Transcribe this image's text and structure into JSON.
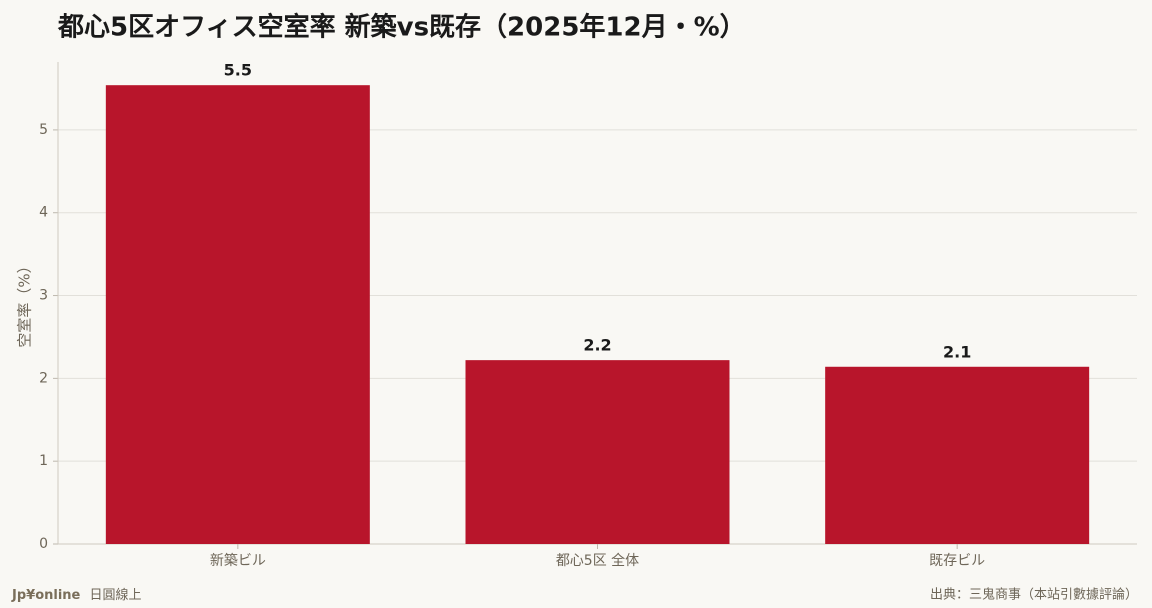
{
  "chart_data": {
    "type": "bar",
    "title": "都心5区オフィス空室率 新築vs既存（2025年12月・%）",
    "y_label": "空室率（%）",
    "categories": [
      "新築ビル",
      "都心5区 全体",
      "既存ビル"
    ],
    "values": [
      5.54,
      2.22,
      2.14
    ],
    "value_labels": [
      "5.5",
      "2.2",
      "2.1"
    ],
    "color": "#b8152b",
    "ylim": [
      0,
      5.82
    ],
    "yticks": [
      0,
      1,
      2,
      3,
      4,
      5
    ],
    "grid": true
  },
  "footer": {
    "brand": "Jp¥online",
    "brand_sub": "日圓線上",
    "source": "出典：三鬼商事（本站引數據評論）"
  }
}
